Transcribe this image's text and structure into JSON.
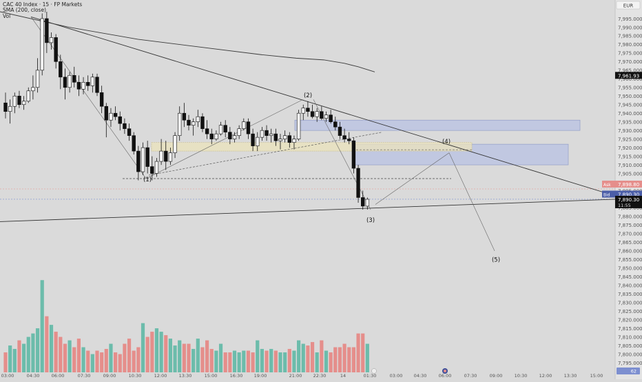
{
  "header": {
    "symbol_line": "CAC 40 Index · 15 · FP Markets",
    "sma_line": "SMA (200, close)",
    "vol_line": "Vol",
    "currency": "EUR"
  },
  "price_scale": {
    "ticks": [
      7995,
      7990,
      7985,
      7980,
      7975,
      7970,
      7965,
      7960,
      7955,
      7950,
      7945,
      7940,
      7935,
      7930,
      7925,
      7920,
      7915,
      7910,
      7905,
      7900,
      7895,
      7890,
      7885,
      7880,
      7875,
      7870,
      7865,
      7860,
      7855,
      7850,
      7845,
      7840,
      7835,
      7830,
      7825,
      7820,
      7815,
      7810,
      7805,
      7800,
      7795
    ],
    "min": 7793,
    "max": 7999,
    "sma_label": "7,961.93",
    "ask_label": "Ask",
    "ask_value": "7,898.80",
    "bid_label": "Bid",
    "bid_value": "7,890.30",
    "last_value": "7,890.30",
    "countdown": "11:55",
    "bottom_badge": "62"
  },
  "time_axis": {
    "labels": [
      "03:00",
      "04:30",
      "06:00",
      "07:30",
      "09:00",
      "10:30",
      "12:00",
      "13:30",
      "15:00",
      "16:30",
      "19:00",
      "21:00",
      "22:30",
      "14",
      "01:30",
      "03:00",
      "04:30",
      "06:00",
      "07:30",
      "09:00",
      "10:30",
      "12:00",
      "13:30",
      "15:00"
    ]
  },
  "chart_data": {
    "type": "candlestick",
    "title": "CAC 40 Index · 15 · FP Markets",
    "price_unit": "EUR",
    "ylim": [
      7793,
      7999
    ],
    "candles": [
      {
        "o": 7946,
        "h": 7952,
        "l": 7937,
        "c": 7941
      },
      {
        "o": 7941,
        "h": 7948,
        "l": 7934,
        "c": 7944
      },
      {
        "o": 7944,
        "h": 7952,
        "l": 7940,
        "c": 7950
      },
      {
        "o": 7950,
        "h": 7953,
        "l": 7943,
        "c": 7945
      },
      {
        "o": 7945,
        "h": 7950,
        "l": 7942,
        "c": 7947
      },
      {
        "o": 7947,
        "h": 7955,
        "l": 7946,
        "c": 7953
      },
      {
        "o": 7953,
        "h": 7962,
        "l": 7948,
        "c": 7955
      },
      {
        "o": 7955,
        "h": 7972,
        "l": 7952,
        "c": 7965
      },
      {
        "o": 7965,
        "h": 7998,
        "l": 7962,
        "c": 7995
      },
      {
        "o": 7995,
        "h": 7999,
        "l": 7975,
        "c": 7981
      },
      {
        "o": 7981,
        "h": 7987,
        "l": 7977,
        "c": 7984
      },
      {
        "o": 7984,
        "h": 7986,
        "l": 7966,
        "c": 7970
      },
      {
        "o": 7970,
        "h": 7974,
        "l": 7954,
        "c": 7961
      },
      {
        "o": 7961,
        "h": 7966,
        "l": 7948,
        "c": 7955
      },
      {
        "o": 7955,
        "h": 7964,
        "l": 7952,
        "c": 7962
      },
      {
        "o": 7962,
        "h": 7967,
        "l": 7955,
        "c": 7958
      },
      {
        "o": 7958,
        "h": 7962,
        "l": 7950,
        "c": 7954
      },
      {
        "o": 7954,
        "h": 7961,
        "l": 7951,
        "c": 7958
      },
      {
        "o": 7958,
        "h": 7962,
        "l": 7953,
        "c": 7956
      },
      {
        "o": 7956,
        "h": 7963,
        "l": 7952,
        "c": 7961
      },
      {
        "o": 7961,
        "h": 7963,
        "l": 7950,
        "c": 7952
      },
      {
        "o": 7952,
        "h": 7956,
        "l": 7940,
        "c": 7944
      },
      {
        "o": 7944,
        "h": 7946,
        "l": 7926,
        "c": 7936
      },
      {
        "o": 7936,
        "h": 7943,
        "l": 7932,
        "c": 7940
      },
      {
        "o": 7940,
        "h": 7944,
        "l": 7936,
        "c": 7938
      },
      {
        "o": 7938,
        "h": 7941,
        "l": 7930,
        "c": 7934
      },
      {
        "o": 7934,
        "h": 7937,
        "l": 7928,
        "c": 7931
      },
      {
        "o": 7931,
        "h": 7934,
        "l": 7924,
        "c": 7927
      },
      {
        "o": 7927,
        "h": 7929,
        "l": 7916,
        "c": 7918
      },
      {
        "o": 7918,
        "h": 7921,
        "l": 7901,
        "c": 7906
      },
      {
        "o": 7906,
        "h": 7923,
        "l": 7904,
        "c": 7920
      },
      {
        "o": 7920,
        "h": 7924,
        "l": 7905,
        "c": 7909
      },
      {
        "o": 7909,
        "h": 7915,
        "l": 7901,
        "c": 7905
      },
      {
        "o": 7905,
        "h": 7914,
        "l": 7903,
        "c": 7912
      },
      {
        "o": 7912,
        "h": 7925,
        "l": 7910,
        "c": 7918
      },
      {
        "o": 7918,
        "h": 7924,
        "l": 7907,
        "c": 7912
      },
      {
        "o": 7912,
        "h": 7920,
        "l": 7910,
        "c": 7917
      },
      {
        "o": 7917,
        "h": 7929,
        "l": 7914,
        "c": 7927
      },
      {
        "o": 7927,
        "h": 7944,
        "l": 7924,
        "c": 7940
      },
      {
        "o": 7940,
        "h": 7946,
        "l": 7932,
        "c": 7936
      },
      {
        "o": 7936,
        "h": 7939,
        "l": 7930,
        "c": 7933
      },
      {
        "o": 7933,
        "h": 7937,
        "l": 7927,
        "c": 7935
      },
      {
        "o": 7935,
        "h": 7942,
        "l": 7932,
        "c": 7938
      },
      {
        "o": 7938,
        "h": 7940,
        "l": 7929,
        "c": 7931
      },
      {
        "o": 7931,
        "h": 7936,
        "l": 7925,
        "c": 7928
      },
      {
        "o": 7928,
        "h": 7931,
        "l": 7922,
        "c": 7925
      },
      {
        "o": 7925,
        "h": 7930,
        "l": 7924,
        "c": 7928
      },
      {
        "o": 7928,
        "h": 7935,
        "l": 7927,
        "c": 7933
      },
      {
        "o": 7933,
        "h": 7936,
        "l": 7926,
        "c": 7929
      },
      {
        "o": 7929,
        "h": 7932,
        "l": 7922,
        "c": 7925
      },
      {
        "o": 7925,
        "h": 7929,
        "l": 7923,
        "c": 7927
      },
      {
        "o": 7927,
        "h": 7933,
        "l": 7925,
        "c": 7931
      },
      {
        "o": 7931,
        "h": 7937,
        "l": 7930,
        "c": 7935
      },
      {
        "o": 7935,
        "h": 7937,
        "l": 7925,
        "c": 7928
      },
      {
        "o": 7928,
        "h": 7931,
        "l": 7918,
        "c": 7921
      },
      {
        "o": 7921,
        "h": 7929,
        "l": 7918,
        "c": 7926
      },
      {
        "o": 7926,
        "h": 7932,
        "l": 7924,
        "c": 7930
      },
      {
        "o": 7930,
        "h": 7933,
        "l": 7924,
        "c": 7927
      },
      {
        "o": 7927,
        "h": 7931,
        "l": 7923,
        "c": 7928
      },
      {
        "o": 7928,
        "h": 7931,
        "l": 7921,
        "c": 7924
      },
      {
        "o": 7924,
        "h": 7928,
        "l": 7919,
        "c": 7925
      },
      {
        "o": 7925,
        "h": 7930,
        "l": 7923,
        "c": 7927
      },
      {
        "o": 7927,
        "h": 7929,
        "l": 7920,
        "c": 7923
      },
      {
        "o": 7923,
        "h": 7927,
        "l": 7919,
        "c": 7925
      },
      {
        "o": 7925,
        "h": 7942,
        "l": 7924,
        "c": 7940
      },
      {
        "o": 7940,
        "h": 7945,
        "l": 7936,
        "c": 7943
      },
      {
        "o": 7943,
        "h": 7947,
        "l": 7938,
        "c": 7941
      },
      {
        "o": 7941,
        "h": 7945,
        "l": 7937,
        "c": 7938
      },
      {
        "o": 7938,
        "h": 7943,
        "l": 7935,
        "c": 7941
      },
      {
        "o": 7941,
        "h": 7944,
        "l": 7936,
        "c": 7937
      },
      {
        "o": 7937,
        "h": 7941,
        "l": 7935,
        "c": 7939
      },
      {
        "o": 7939,
        "h": 7942,
        "l": 7934,
        "c": 7935
      },
      {
        "o": 7935,
        "h": 7938,
        "l": 7930,
        "c": 7932
      },
      {
        "o": 7932,
        "h": 7935,
        "l": 7925,
        "c": 7927
      },
      {
        "o": 7927,
        "h": 7931,
        "l": 7923,
        "c": 7925
      },
      {
        "o": 7925,
        "h": 7929,
        "l": 7922,
        "c": 7924
      },
      {
        "o": 7924,
        "h": 7926,
        "l": 7905,
        "c": 7908
      },
      {
        "o": 7908,
        "h": 7910,
        "l": 7888,
        "c": 7891
      },
      {
        "o": 7891,
        "h": 7895,
        "l": 7884,
        "c": 7886
      },
      {
        "o": 7886,
        "h": 7891,
        "l": 7884,
        "c": 7890
      }
    ],
    "volume": [
      7801,
      7805,
      7803,
      7808,
      7806,
      7810,
      7812,
      7815,
      7843,
      7822,
      7817,
      7813,
      7810,
      7806,
      7808,
      7804,
      7809,
      7804,
      7802,
      7800,
      7802,
      7801,
      7803,
      7806,
      7801,
      7800,
      7806,
      7809,
      7802,
      7804,
      7818,
      7810,
      7813,
      7815,
      7813,
      7811,
      7809,
      7805,
      7808,
      7806,
      7806,
      7803,
      7809,
      7804,
      7808,
      7803,
      7802,
      7806,
      7801,
      7801,
      7802,
      7801,
      7802,
      7802,
      7801,
      7808,
      7803,
      7802,
      7803,
      7802,
      7801,
      7801,
      7803,
      7802,
      7808,
      7806,
      7805,
      7807,
      7801,
      7808,
      7802,
      7801,
      7804,
      7804,
      7806,
      7804,
      7804,
      7812,
      7812,
      7806
    ],
    "sma200": [
      [
        0,
        7999
      ],
      [
        100,
        7990
      ],
      [
        200,
        7983
      ],
      [
        300,
        7978
      ],
      [
        380,
        7974
      ],
      [
        430,
        7972
      ],
      [
        470,
        7971
      ],
      [
        500,
        7969
      ],
      [
        520,
        7967
      ],
      [
        544,
        7964
      ]
    ],
    "annotations": [
      {
        "label": "(1)",
        "price": 7902
      },
      {
        "label": "(2)",
        "price": 7949
      },
      {
        "label": "(3)",
        "price": 7880
      },
      {
        "label": "(4)",
        "price": 7920
      },
      {
        "label": "(5)",
        "price": 7857
      }
    ],
    "dashed_levels": [
      7902,
      7920
    ],
    "zones": [
      {
        "top": 7936,
        "bottom": 7930,
        "color": "#b8c2e3"
      },
      {
        "top": 7922,
        "bottom": 7910,
        "color": "#b8c2e3"
      },
      {
        "top": 7923,
        "bottom": 7918,
        "color": "#ebe3bb"
      }
    ],
    "colors": {
      "up": "#111111",
      "down": "#111111",
      "vol_up": "#6cbcab",
      "vol_down": "#e58e8b",
      "ask": "#e58e8b",
      "bid": "#7d8fd0"
    }
  }
}
